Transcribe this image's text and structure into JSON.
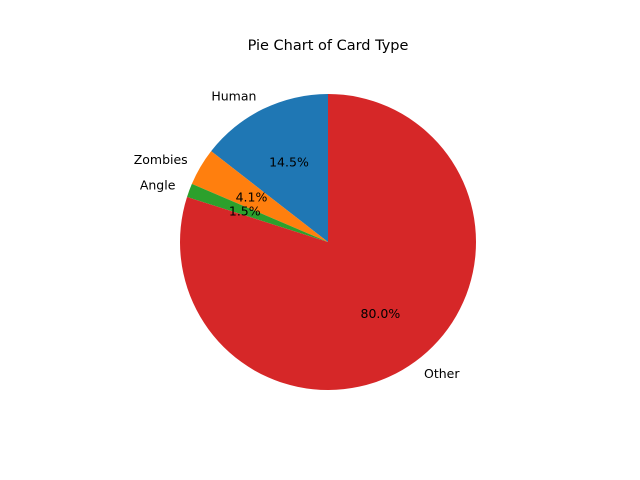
{
  "chart_data": {
    "type": "pie",
    "title": "Pie Chart of Card Type",
    "categories": [
      "Human",
      "Zombies",
      "Angle",
      "Other"
    ],
    "values": [
      14.5,
      4.1,
      1.5,
      80.0
    ],
    "percent_labels": [
      "14.5%",
      "4.1%",
      "1.5%",
      "80.0%"
    ],
    "colors": [
      "#1f77b4",
      "#ff7f0e",
      "#2ca02c",
      "#d62728"
    ],
    "start_angle_deg": 90,
    "direction": "counterclockwise",
    "legend": "none"
  }
}
